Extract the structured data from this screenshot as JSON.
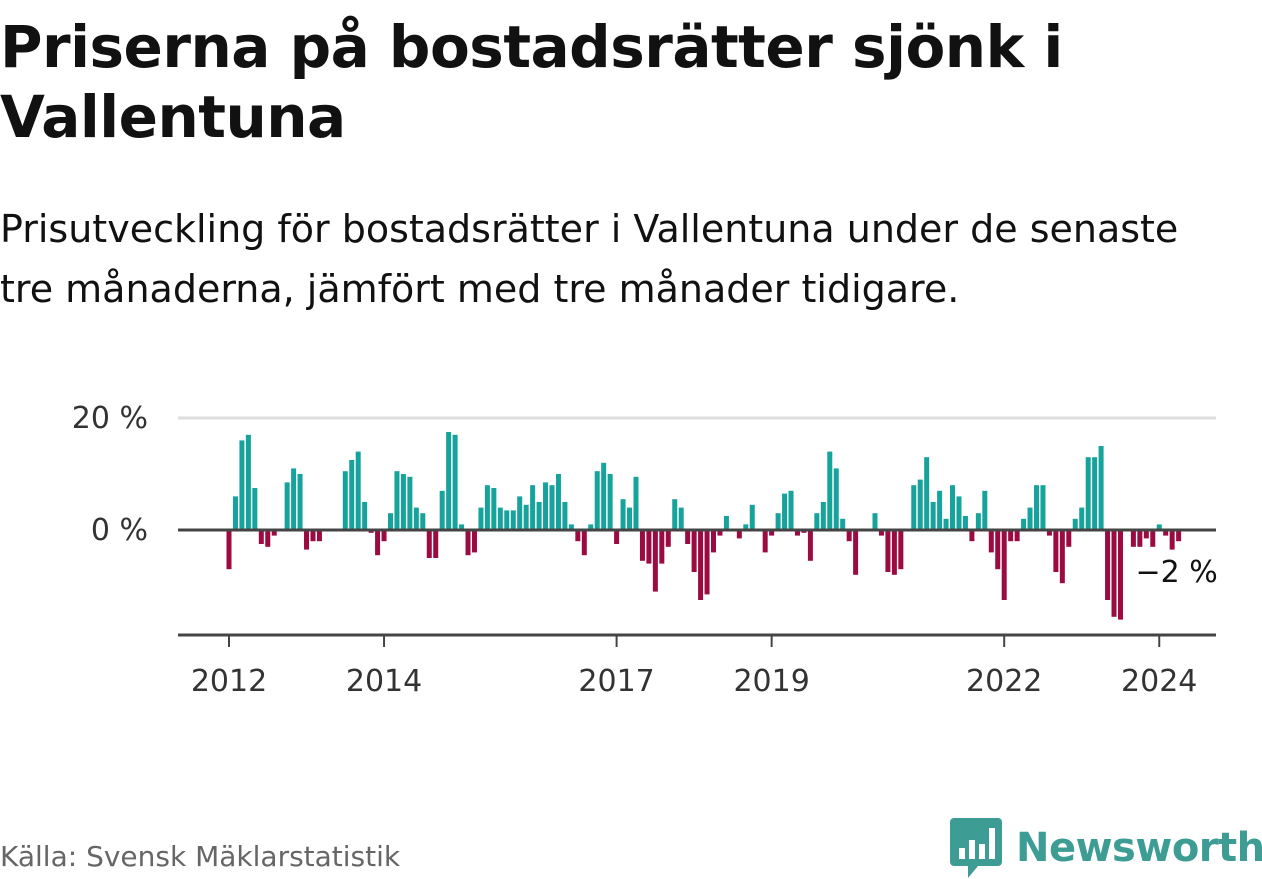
{
  "title": "Priserna på bostadsrätter sjönk i Vallentuna",
  "subtitle": "Prisutveckling för bostadsrätter i Vallentuna under de senaste tre månaderna, jämfört med tre månader tidigare.",
  "source": "Källa: Svensk Mäklarstatistik",
  "brand": "Newsworthy",
  "colors": {
    "positive": "#15a39b",
    "negative": "#9c0a42",
    "brand": "#3d9c94"
  },
  "chart_data": {
    "type": "bar",
    "ylim": [
      -18,
      20
    ],
    "yticks": [
      {
        "value": 20,
        "label": "20 %"
      },
      {
        "value": 0,
        "label": "0 %"
      }
    ],
    "xticks": [
      {
        "index": 0,
        "label": "2012"
      },
      {
        "index": 24,
        "label": "2014"
      },
      {
        "index": 60,
        "label": "2017"
      },
      {
        "index": 84,
        "label": "2019"
      },
      {
        "index": 120,
        "label": "2022"
      },
      {
        "index": 144,
        "label": "2024"
      }
    ],
    "end_label": "−2 %",
    "values": [
      -7,
      6,
      16,
      17,
      7.5,
      -2.5,
      -3,
      -1,
      0,
      8.5,
      11,
      10,
      -3.5,
      -2,
      -2,
      0,
      0,
      0,
      10.5,
      12.5,
      14,
      5,
      -0.5,
      -4.5,
      -2,
      3,
      10.5,
      10,
      9.5,
      4,
      3,
      -5,
      -5,
      7,
      17.5,
      17,
      1,
      -4.5,
      -4,
      4,
      8,
      7.5,
      4,
      3.5,
      3.5,
      6,
      4.5,
      8,
      5,
      8.5,
      8,
      10,
      5,
      1,
      -2,
      -4.5,
      1,
      10.5,
      12,
      10,
      -2.5,
      5.5,
      4,
      9.5,
      -5.5,
      -6,
      -11,
      -6,
      -3,
      5.5,
      4,
      -2.5,
      -7.5,
      -12.5,
      -11.5,
      -4,
      -1,
      2.5,
      0,
      -1.5,
      1,
      4.5,
      0,
      -4,
      -1,
      3,
      6.5,
      7,
      -1,
      -0.5,
      -5.5,
      3,
      5,
      14,
      11,
      2,
      -2,
      -8,
      0,
      0,
      3,
      -1,
      -7.5,
      -8,
      -7,
      0,
      8,
      9,
      13,
      5,
      7,
      2,
      8,
      6,
      2.5,
      -2,
      3,
      7,
      -4,
      -7,
      -12.5,
      -2,
      -2,
      2,
      4,
      8,
      8,
      -1,
      -7.5,
      -9.5,
      -3,
      2,
      4,
      13,
      13,
      15,
      -12.5,
      -15.5,
      -16,
      0,
      -3,
      -3,
      -1.5,
      -3,
      1,
      -1,
      -3.5,
      -2
    ]
  }
}
